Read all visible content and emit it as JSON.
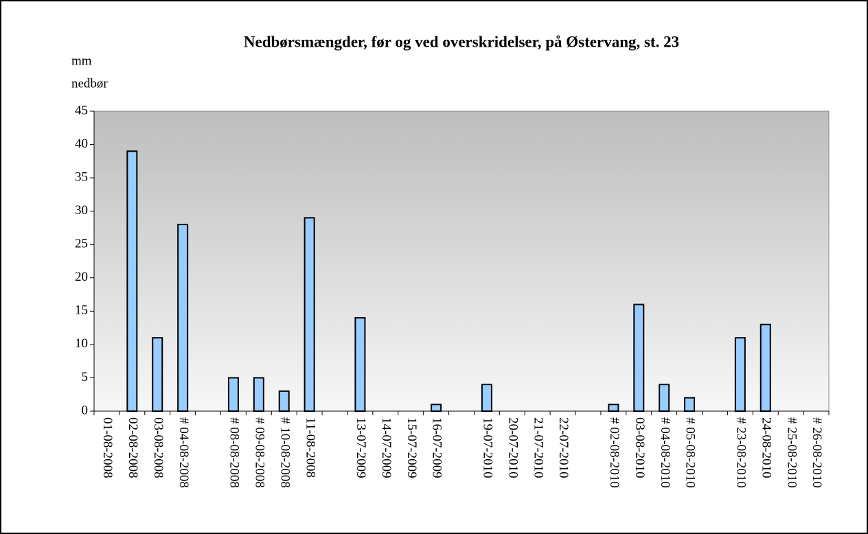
{
  "chart_data": {
    "type": "bar",
    "title": "Nedbørsmængder, før og ved overskridelser, på Østervang, st. 23",
    "ylabel": [
      "mm",
      "nedbør"
    ],
    "categories": [
      "01-08-2008",
      "02-08-2008",
      "03-08-2008",
      "# 04-08-2008",
      null,
      "# 08-08-2008",
      "# 09-08-2008",
      "# 10-08-2008",
      "11-08-2008",
      null,
      "13-07-2009",
      "14-07-2009",
      "15-07-2009",
      "16-07-2009",
      null,
      "19-07-2010",
      "20-07-2010",
      "21-07-2010",
      "22-07-2010",
      null,
      "# 02-08-2010",
      "03-08-2010",
      "# 04-08-2010",
      "# 05-08-2010",
      null,
      "# 23-08-2010",
      "24-08-2010",
      "# 25-08-2010",
      "# 26-08-2010"
    ],
    "values": [
      0,
      39,
      11,
      28,
      null,
      5,
      5,
      3,
      29,
      null,
      14,
      0,
      0,
      1,
      null,
      4,
      0,
      0,
      0,
      null,
      1,
      16,
      4,
      2,
      null,
      11,
      13,
      0,
      0
    ],
    "color": "#99ccff",
    "ylim": [
      0,
      45
    ],
    "yticks": [
      0,
      5,
      10,
      15,
      20,
      25,
      30,
      35,
      40,
      45
    ],
    "grid": false
  }
}
